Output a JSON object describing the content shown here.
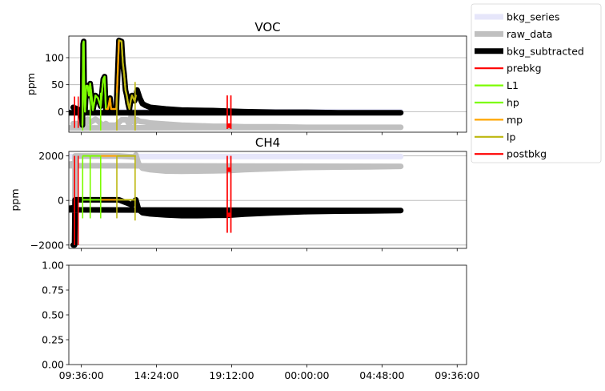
{
  "colors": {
    "bkg_series": "#e6e6fa",
    "raw_data": "#c0c0c0",
    "bkg_subtracted": "#000000",
    "prebkg": "#ff0000",
    "L1": "#7cfc00",
    "hp": "#7cfc00",
    "mp": "#ffa500",
    "lp": "#bdb70e",
    "postbkg": "#ff0000",
    "grid": "#b0b0b0",
    "red_segment": "#e83030"
  },
  "legend": {
    "placement": "outside top-right",
    "entries": [
      "bkg_series",
      "raw_data",
      "bkg_subtracted",
      "prebkg",
      "L1",
      "hp",
      "mp",
      "lp",
      "postbkg"
    ]
  },
  "x_axis": {
    "tick_labels": [
      "09:36:00",
      "14:24:00",
      "19:12:00",
      "00:00:00",
      "04:48:00",
      "09:36:00"
    ]
  },
  "chart_data": [
    {
      "type": "line",
      "title": "VOC",
      "ylabel": "ppm",
      "xlim": [
        "08:48",
        "10:12 (+1 day)"
      ],
      "ylim": [
        -38,
        140
      ],
      "yticks": [
        0,
        50,
        100
      ],
      "ytick_labels": [
        "0",
        "50",
        "100"
      ],
      "grid": "y",
      "series": [
        {
          "name": "bkg_series",
          "x": [
            "09:05",
            "09:30",
            "10:00",
            "11:00",
            "12:00",
            "13:00",
            "14:00",
            "16:00",
            "18:00",
            "19:00",
            "20:00",
            "22:00",
            "00:00",
            "02:00",
            "04:00",
            "06:00",
            "08:00",
            "09:05"
          ],
          "y": [
            0,
            0,
            0,
            0,
            0,
            0,
            0,
            0,
            0,
            0,
            0,
            0,
            0,
            0,
            0,
            0,
            0,
            0
          ]
        },
        {
          "name": "raw_data",
          "x": [
            "09:05",
            "09:20",
            "09:35",
            "09:44",
            "09:50",
            "10:00",
            "10:10",
            "10:20",
            "10:30",
            "10:40",
            "10:50",
            "11:00",
            "11:10",
            "11:18",
            "11:30",
            "11:40",
            "11:50",
            "12:10",
            "12:30",
            "12:40",
            "12:50",
            "13:00",
            "13:10",
            "13:20",
            "13:40",
            "14:00",
            "15:00",
            "16:00",
            "18:00",
            "19:00",
            "20:00",
            "22:00",
            "00:00",
            "02:00",
            "04:00",
            "06:00",
            "08:00",
            "09:05"
          ],
          "y": [
            -22,
            -22,
            -30,
            -20,
            -26,
            -14,
            -20,
            -17,
            -14,
            -17,
            -22,
            -25,
            -22,
            -25,
            -25,
            -25,
            -25,
            -15,
            -15,
            -25,
            0,
            -20,
            -15,
            -18,
            -19,
            -21,
            -23,
            -25,
            -27,
            -27,
            -28,
            -28,
            -29,
            -29,
            -29,
            -29,
            -30,
            -30
          ]
        },
        {
          "name": "bkg_subtracted",
          "x": [
            "09:05",
            "09:15",
            "09:25",
            "09:35",
            "09:40",
            "09:43",
            "09:45",
            "09:47",
            "09:50",
            "09:55",
            "10:00",
            "10:05",
            "10:10",
            "10:15",
            "10:20",
            "10:25",
            "10:30",
            "10:40",
            "10:50",
            "11:00",
            "11:05",
            "11:10",
            "11:15",
            "11:18",
            "11:22",
            "11:26",
            "11:30",
            "11:40",
            "11:50",
            "12:00",
            "12:10",
            "12:15",
            "12:20",
            "12:25",
            "12:30",
            "12:35",
            "12:40",
            "12:45",
            "12:50",
            "12:55",
            "13:00",
            "13:05",
            "13:10",
            "13:20",
            "13:30",
            "13:40",
            "14:00",
            "15:00",
            "16:00",
            "18:00",
            "19:00",
            "20:00",
            "22:00",
            "00:00",
            "02:00",
            "04:00",
            "06:00",
            "08:00",
            "09:05"
          ],
          "y": [
            8,
            6,
            4,
            3,
            -25,
            125,
            130,
            45,
            0,
            48,
            48,
            30,
            52,
            30,
            3,
            15,
            30,
            25,
            10,
            60,
            65,
            5,
            5,
            5,
            15,
            25,
            5,
            5,
            5,
            132,
            130,
            90,
            70,
            40,
            30,
            15,
            5,
            20,
            30,
            25,
            20,
            30,
            40,
            25,
            15,
            12,
            8,
            5,
            3,
            2,
            1,
            0,
            -1,
            -1,
            -2,
            -2,
            -2,
            -2,
            -2
          ]
        },
        {
          "name": "prebkg",
          "x": [
            "09:10",
            "09:10",
            "09:24",
            "09:24"
          ],
          "y": [
            -30,
            28,
            -30,
            28
          ]
        },
        {
          "name": "L1",
          "x": [
            "09:40",
            "09:43",
            "09:45",
            "09:47",
            "09:50",
            "09:55",
            "10:00",
            "10:05",
            "10:10",
            "10:15",
            "10:20",
            "10:25",
            "10:30",
            "10:40"
          ],
          "y": [
            -25,
            125,
            130,
            45,
            0,
            48,
            48,
            30,
            52,
            30,
            3,
            15,
            30,
            25
          ]
        },
        {
          "name": "hp",
          "x": [
            "10:40",
            "10:50",
            "11:00",
            "11:05",
            "11:10"
          ],
          "y": [
            25,
            10,
            60,
            65,
            5
          ]
        },
        {
          "name": "mp",
          "x": [
            "11:10",
            "11:15",
            "11:18",
            "11:22",
            "11:26",
            "11:30",
            "11:40",
            "11:50",
            "12:00"
          ],
          "y": [
            5,
            5,
            5,
            15,
            25,
            5,
            5,
            5,
            132
          ]
        },
        {
          "name": "lp",
          "x": [
            "12:00",
            "12:10",
            "12:15",
            "12:20",
            "12:25",
            "12:30",
            "12:35",
            "12:40",
            "12:45",
            "12:50",
            "12:55",
            "13:00",
            "13:05"
          ],
          "y": [
            132,
            130,
            90,
            70,
            40,
            30,
            15,
            5,
            20,
            30,
            25,
            20,
            30
          ]
        },
        {
          "name": "postbkg",
          "x": [
            "18:55",
            "18:55",
            "19:09",
            "19:09"
          ],
          "y": [
            -32,
            30,
            -32,
            30
          ]
        }
      ],
      "vlines": [
        {
          "name": "L1",
          "x": "09:41",
          "y": [
            -35,
            35
          ]
        },
        {
          "name": "hp",
          "x": "10:10",
          "y": [
            -35,
            35
          ]
        },
        {
          "name": "hp",
          "x": "10:50",
          "y": [
            -35,
            35
          ]
        },
        {
          "name": "lp",
          "x": "11:52",
          "y": [
            -35,
            35
          ]
        },
        {
          "name": "lp",
          "x": "13:02",
          "y": [
            -35,
            55
          ]
        }
      ]
    },
    {
      "type": "line",
      "title": "CH4",
      "ylabel": "ppm",
      "xlim": [
        "08:48",
        "10:12 (+1 day)"
      ],
      "ylim": [
        -2150,
        2200
      ],
      "yticks": [
        -2000,
        0,
        2000
      ],
      "ytick_labels": [
        "−2000",
        "0",
        "2000"
      ],
      "grid": "y",
      "series": [
        {
          "name": "bkg_series",
          "x": [
            "09:05",
            "10:00",
            "12:00",
            "14:00",
            "16:00",
            "18:00",
            "20:00",
            "22:00",
            "00:00",
            "02:00",
            "04:00",
            "06:00",
            "08:00",
            "09:05"
          ],
          "y": [
            1970,
            1970,
            1970,
            1970,
            1970,
            1970,
            1970,
            1970,
            1970,
            1970,
            1970,
            1970,
            1970,
            1970
          ]
        },
        {
          "name": "raw_data",
          "x": [
            "09:05",
            "09:10",
            "09:12",
            "09:15",
            "09:30",
            "10:00",
            "11:00",
            "12:00",
            "13:00",
            "13:05",
            "13:15",
            "13:30",
            "14:00",
            "15:00",
            "16:00",
            "17:00",
            "18:00",
            "19:00",
            "20:00",
            "22:00",
            "00:00",
            "02:00",
            "04:00",
            "06:00",
            "08:00",
            "09:05"
          ],
          "y": [
            -2000,
            -2000,
            2000,
            2000,
            2000,
            2000,
            2000,
            2000,
            1950,
            2050,
            1650,
            1450,
            1380,
            1320,
            1310,
            1320,
            1330,
            1340,
            1380,
            1430,
            1480,
            1500,
            1510,
            1530,
            1560,
            1650
          ]
        },
        {
          "name": "bkg_subtracted",
          "x": [
            "09:05",
            "09:10",
            "09:12",
            "09:15",
            "09:30",
            "10:00",
            "11:00",
            "12:00",
            "12:50",
            "13:00",
            "13:05",
            "13:15",
            "13:30",
            "14:00",
            "15:00",
            "16:00",
            "17:00",
            "18:00",
            "19:00",
            "20:00",
            "22:00",
            "00:00",
            "02:00",
            "04:00",
            "06:00",
            "08:00",
            "09:05"
          ],
          "y": [
            -2000,
            -2000,
            30,
            30,
            30,
            30,
            30,
            30,
            -200,
            -30,
            30,
            -400,
            -550,
            -600,
            -650,
            -680,
            -680,
            -670,
            -660,
            -610,
            -550,
            -500,
            -480,
            -470,
            -450,
            -420,
            -330
          ]
        },
        {
          "name": "prebkg",
          "x": [
            "09:10",
            "09:10",
            "09:24",
            "09:24"
          ],
          "y": [
            -2000,
            2000,
            -2000,
            2000
          ]
        },
        {
          "name": "postbkg",
          "x": [
            "18:55",
            "18:55",
            "19:09",
            "19:09"
          ],
          "y": [
            -1450,
            2000,
            -1450,
            2000
          ]
        }
      ],
      "vlines": [
        {
          "name": "L1",
          "x": "09:41",
          "y": [
            -800,
            2000
          ]
        },
        {
          "name": "hp",
          "x": "10:10",
          "y": [
            -800,
            2000
          ]
        },
        {
          "name": "hp",
          "x": "10:50",
          "y": [
            -800,
            2000
          ]
        },
        {
          "name": "lp",
          "x": "11:52",
          "y": [
            -800,
            2000
          ]
        },
        {
          "name": "lp",
          "x": "13:02",
          "y": [
            -900,
            2000
          ]
        }
      ]
    },
    {
      "type": "line",
      "title": "",
      "ylim": [
        0,
        1
      ],
      "yticks": [
        0,
        0.25,
        0.5,
        0.75,
        1
      ],
      "ytick_labels": [
        "0.00",
        "0.25",
        "0.50",
        "0.75",
        "1.00"
      ],
      "series": []
    }
  ]
}
